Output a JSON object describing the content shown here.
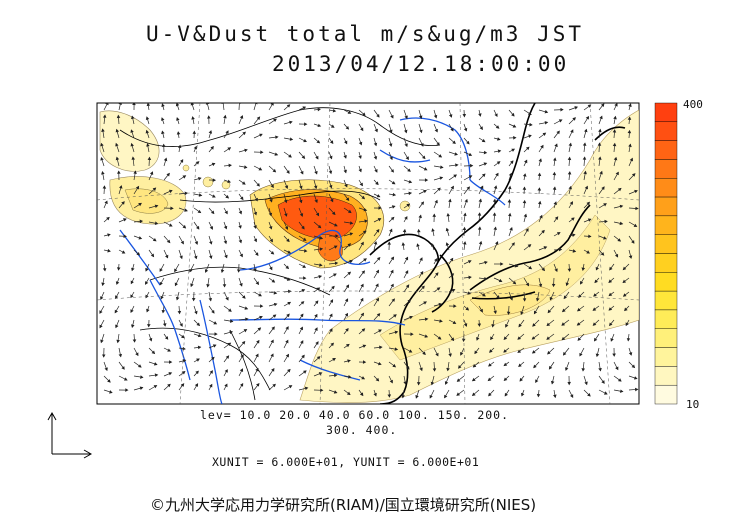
{
  "title": {
    "line1": "U-V&Dust total m/s&ug/m3 JST",
    "line2": "2013/04/12.18:00:00"
  },
  "legend": {
    "levels_line1": "lev= 10.0 20.0 40.0 60.0 100. 150. 200.",
    "levels_line2": "300. 400.",
    "units_text": "XUNIT = 6.000E+01, YUNIT = 6.000E+01",
    "colorbar_max_label": "400",
    "colorbar_min_label": "10",
    "colorbar_colors": [
      "#fffbe0",
      "#fff7c0",
      "#fff49c",
      "#fff07a",
      "#ffec58",
      "#ffe63a",
      "#ffdc22",
      "#ffd020",
      "#ffc41e",
      "#ffb41c",
      "#ffa01a",
      "#ff8c18",
      "#ff7816",
      "#ff6414",
      "#ff5012",
      "#ff4010"
    ]
  },
  "credit": "©九州大学応用力学研究所(RIAM)/国立環境研究所(NIES)",
  "map": {
    "region": "East Asia",
    "dust_colors": {
      "light": "#fff4b8",
      "mid": "#ffe680",
      "high": "#ffb020",
      "peak": "#ff5a10"
    },
    "river_color": "#1a56e0",
    "coast_color": "#000000",
    "vector_color": "#222222"
  },
  "icons": {
    "wind_reference": "wind-reference-arrow-icon"
  }
}
